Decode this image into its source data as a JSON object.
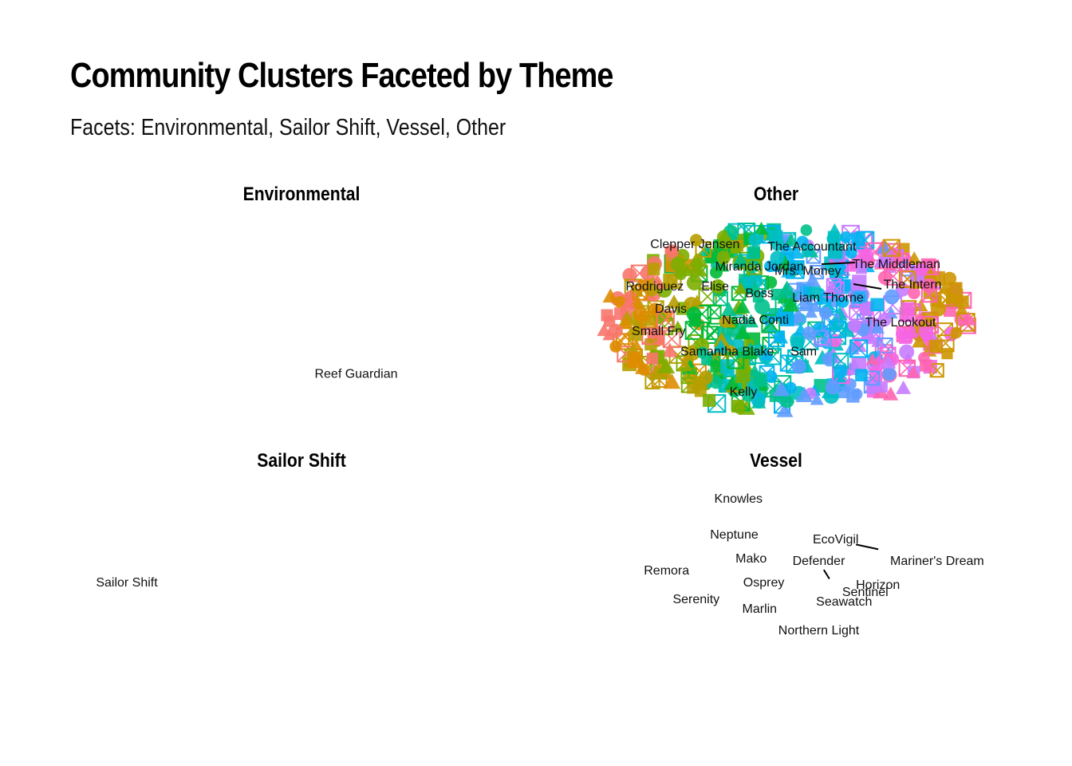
{
  "title": "Community Clusters Faceted by Theme",
  "subtitle": "Facets: Environmental, Sailor Shift, Vessel, Other",
  "chart_data": {
    "type": "scatter",
    "title": "Community Clusters Faceted by Theme",
    "subtitle": "Facets: Environmental, Sailor Shift, Vessel, Other",
    "grid": false,
    "legend": "none",
    "facets": [
      {
        "name": "Environmental",
        "nodes": [
          {
            "label": "Reef Guardian",
            "x": 0.62,
            "y": 0.26
          }
        ],
        "edges": []
      },
      {
        "name": "Other",
        "cluster_colors": [
          "#F8766D",
          "#DE8C00",
          "#B79F00",
          "#7CAE00",
          "#00BA38",
          "#00C08B",
          "#00BFC4",
          "#00B4F0",
          "#619CFF",
          "#C77CFF",
          "#F564E3",
          "#FF64B0",
          "#CD9600"
        ],
        "labels": [
          {
            "label": "Clepper Jensen",
            "x": 0.27,
            "y": 0.84
          },
          {
            "label": "The Accountant",
            "x": 0.56,
            "y": 0.83
          },
          {
            "label": "Miranda Jordan",
            "x": 0.43,
            "y": 0.74
          },
          {
            "label": "Mrs. Money",
            "x": 0.55,
            "y": 0.72
          },
          {
            "label": "The Middleman",
            "x": 0.77,
            "y": 0.75
          },
          {
            "label": "Rodriguez",
            "x": 0.17,
            "y": 0.65
          },
          {
            "label": "Elise",
            "x": 0.32,
            "y": 0.65
          },
          {
            "label": "Boss",
            "x": 0.43,
            "y": 0.62
          },
          {
            "label": "The Intern",
            "x": 0.81,
            "y": 0.66
          },
          {
            "label": "Liam Thorne",
            "x": 0.6,
            "y": 0.6
          },
          {
            "label": "Davis",
            "x": 0.21,
            "y": 0.55
          },
          {
            "label": "Nadia Conti",
            "x": 0.42,
            "y": 0.5
          },
          {
            "label": "The Lookout",
            "x": 0.78,
            "y": 0.49
          },
          {
            "label": "Small Fry",
            "x": 0.18,
            "y": 0.45
          },
          {
            "label": "Samantha Blake",
            "x": 0.35,
            "y": 0.36
          },
          {
            "label": "Sam",
            "x": 0.54,
            "y": 0.36
          },
          {
            "label": "Kelly",
            "x": 0.39,
            "y": 0.18
          }
        ]
      },
      {
        "name": "Sailor Shift",
        "nodes": [
          {
            "label": "Sailor Shift",
            "x": 0.12,
            "y": 0.55
          }
        ],
        "edges": []
      },
      {
        "name": "Vessel",
        "nodes": [
          {
            "label": "Knowles",
            "x": 0.36,
            "y": 0.9
          },
          {
            "label": "Neptune",
            "x": 0.35,
            "y": 0.75
          },
          {
            "label": "EcoVigil",
            "x": 0.59,
            "y": 0.73
          },
          {
            "label": "Mako",
            "x": 0.39,
            "y": 0.65
          },
          {
            "label": "Defender",
            "x": 0.55,
            "y": 0.64
          },
          {
            "label": "Mariner's Dream",
            "x": 0.83,
            "y": 0.64
          },
          {
            "label": "Remora",
            "x": 0.19,
            "y": 0.6
          },
          {
            "label": "Osprey",
            "x": 0.42,
            "y": 0.55
          },
          {
            "label": "Horizon",
            "x": 0.69,
            "y": 0.54
          },
          {
            "label": "Sentinel",
            "x": 0.66,
            "y": 0.51
          },
          {
            "label": "Serenity",
            "x": 0.26,
            "y": 0.48
          },
          {
            "label": "Seawatch",
            "x": 0.61,
            "y": 0.47
          },
          {
            "label": "Marlin",
            "x": 0.41,
            "y": 0.44
          },
          {
            "label": "Northern Light",
            "x": 0.55,
            "y": 0.35
          }
        ],
        "edges": [
          [
            "EcoVigil",
            "Mariner's Dream"
          ],
          [
            "Defender",
            "Seawatch"
          ]
        ]
      }
    ]
  }
}
